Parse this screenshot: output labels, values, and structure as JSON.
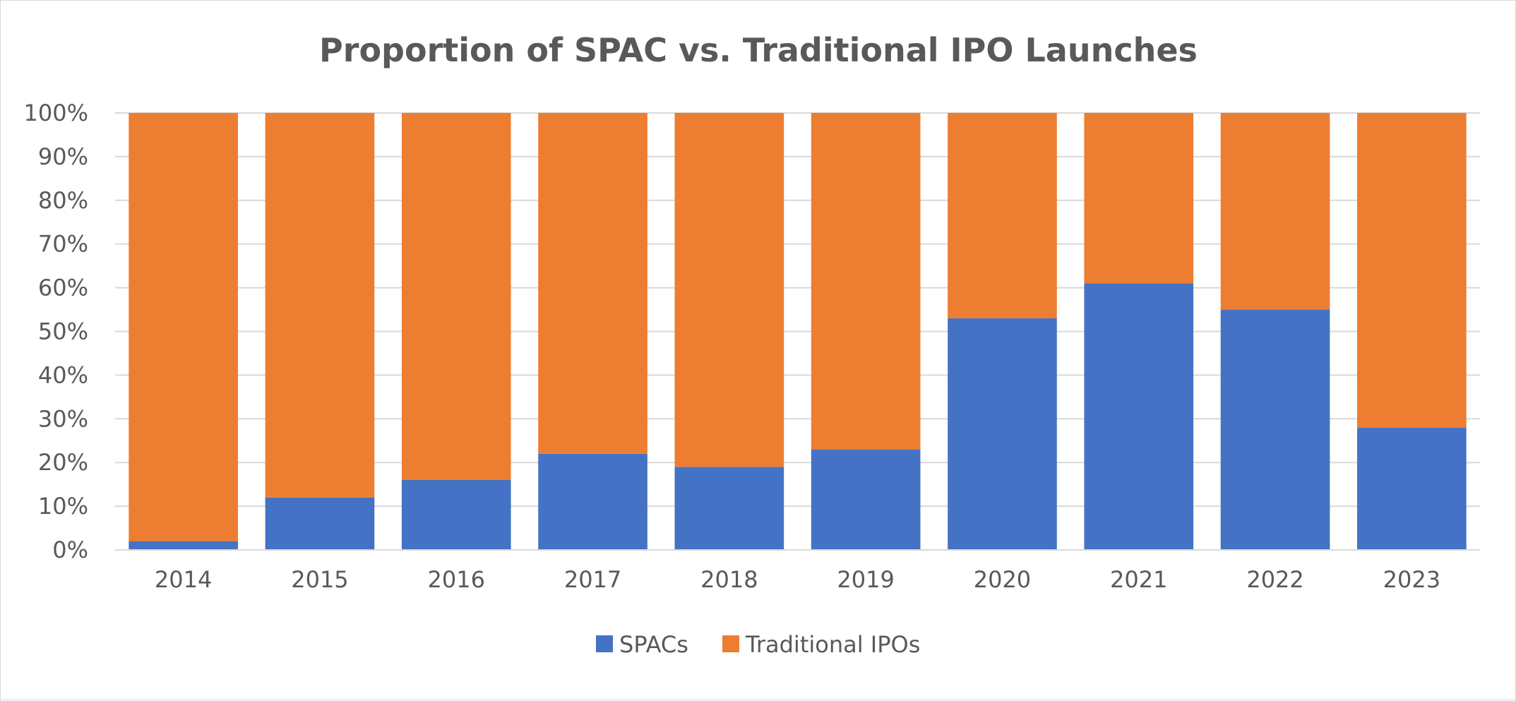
{
  "chart_data": {
    "type": "bar",
    "stacked": true,
    "title": "Proportion of SPAC vs. Traditional IPO Launches",
    "xlabel": "",
    "ylabel": "",
    "categories": [
      "2014",
      "2015",
      "2016",
      "2017",
      "2018",
      "2019",
      "2020",
      "2021",
      "2022",
      "2023"
    ],
    "series": [
      {
        "name": "SPACs",
        "color": "#4472C4",
        "values": [
          2,
          12,
          16,
          22,
          19,
          23,
          53,
          61,
          55,
          28
        ]
      },
      {
        "name": "Traditional IPOs",
        "color": "#ED7D31",
        "values": [
          98,
          88,
          84,
          78,
          81,
          77,
          47,
          39,
          45,
          72
        ]
      }
    ],
    "ylim": [
      0,
      100
    ],
    "yticks": [
      "0%",
      "10%",
      "20%",
      "30%",
      "40%",
      "50%",
      "60%",
      "70%",
      "80%",
      "90%",
      "100%"
    ],
    "grid": true,
    "legend_position": "bottom"
  }
}
